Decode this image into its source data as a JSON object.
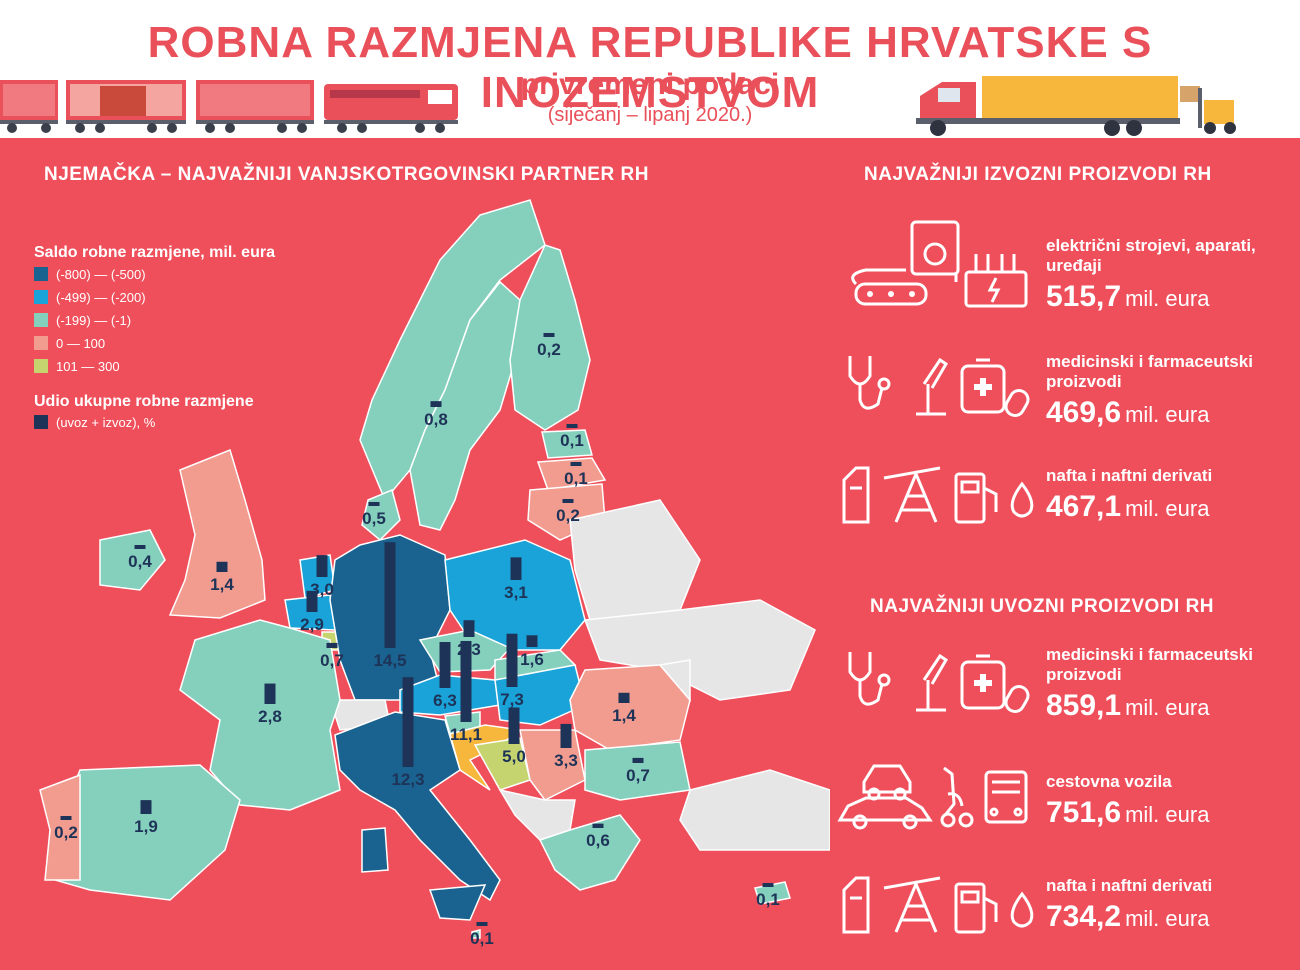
{
  "header": {
    "title": "ROBNA RAZMJENA REPUBLIKE HRVATSKE S INOZEMSTVOM",
    "subtitle": "privremeni podaci",
    "period": "(siječanj – lipanj 2020.)"
  },
  "map_section": {
    "title": "NJEMAČKA – NAJVAŽNIJI VANJSKOTRGOVINSKI PARTNER RH",
    "legend": {
      "saldo_title": "Saldo robne razmjene, mil. eura",
      "saldo_items": [
        {
          "label": "(-800) — (-500)",
          "color": "#1a628f"
        },
        {
          "label": "(-499) — (-200)",
          "color": "#1aa3d8"
        },
        {
          "label": "(-199) — (-1)",
          "color": "#85cfbd"
        },
        {
          "label": "0 — 100",
          "color": "#f29c90"
        },
        {
          "label": "101 — 300",
          "color": "#c5d46f"
        }
      ],
      "udio_title": "Udio ukupne robne razmjene",
      "udio_item": {
        "label": "(uvoz + izvoz), %",
        "color": "#1d3357"
      }
    },
    "countries": [
      {
        "name": "Germany",
        "share_label": "14,5",
        "share": 14.5
      },
      {
        "name": "Italy",
        "share_label": "12,3",
        "share": 12.3
      },
      {
        "name": "Slovenia",
        "share_label": "11,1",
        "share": 11.1
      },
      {
        "name": "Hungary",
        "share_label": "7,3",
        "share": 7.3
      },
      {
        "name": "Austria",
        "share_label": "6,3",
        "share": 6.3
      },
      {
        "name": "Bosnia and Herzegovina",
        "share_label": "5,0",
        "share": 5.0
      },
      {
        "name": "Serbia",
        "share_label": "3,3",
        "share": 3.3
      },
      {
        "name": "Poland",
        "share_label": "3,1",
        "share": 3.1
      },
      {
        "name": "Netherlands",
        "share_label": "3,0",
        "share": 3.0
      },
      {
        "name": "Belgium",
        "share_label": "2,9",
        "share": 2.9
      },
      {
        "name": "France",
        "share_label": "2,8",
        "share": 2.8
      },
      {
        "name": "Czech Republic",
        "share_label": "2,3",
        "share": 2.3
      },
      {
        "name": "Spain",
        "share_label": "1,9",
        "share": 1.9
      },
      {
        "name": "Slovakia",
        "share_label": "1,6",
        "share": 1.6
      },
      {
        "name": "United Kingdom",
        "share_label": "1,4",
        "share": 1.4
      },
      {
        "name": "Romania",
        "share_label": "1,4",
        "share": 1.4
      },
      {
        "name": "Sweden",
        "share_label": "0,8",
        "share": 0.8
      },
      {
        "name": "Luxembourg",
        "share_label": "0,7",
        "share": 0.7
      },
      {
        "name": "Bulgaria",
        "share_label": "0,7",
        "share": 0.7
      },
      {
        "name": "Greece",
        "share_label": "0,6",
        "share": 0.6
      },
      {
        "name": "Denmark",
        "share_label": "0,5",
        "share": 0.5
      },
      {
        "name": "Ireland",
        "share_label": "0,4",
        "share": 0.4
      },
      {
        "name": "Finland",
        "share_label": "0,2",
        "share": 0.2
      },
      {
        "name": "Lithuania",
        "share_label": "0,2",
        "share": 0.2
      },
      {
        "name": "Portugal",
        "share_label": "0,2",
        "share": 0.2
      },
      {
        "name": "Estonia",
        "share_label": "0,1",
        "share": 0.1
      },
      {
        "name": "Latvia",
        "share_label": "0,1",
        "share": 0.1
      },
      {
        "name": "Cyprus",
        "share_label": "0,1",
        "share": 0.1
      },
      {
        "name": "Malta",
        "share_label": "0,1",
        "share": 0.1
      }
    ]
  },
  "exports": {
    "title": "NAJVAŽNIJI IZVOZNI PROIZVODI RH",
    "items": [
      {
        "name": "električni strojevi, aparati, uređaji",
        "value": "515,7",
        "unit": "mil. eura",
        "icon": "electrical-icon"
      },
      {
        "name": "medicinski i farmaceutski proizvodi",
        "value": "469,6",
        "unit": "mil. eura",
        "icon": "medical-icon"
      },
      {
        "name": "nafta i naftni derivati",
        "value": "467,1",
        "unit": "mil. eura",
        "icon": "oil-icon"
      }
    ]
  },
  "imports": {
    "title": "NAJVAŽNIJI UVOZNI PROIZVODI RH",
    "items": [
      {
        "name": "medicinski i farmaceutski proizvodi",
        "value": "859,1",
        "unit": "mil. eura",
        "icon": "medical-icon"
      },
      {
        "name": "cestovna vozila",
        "value": "751,6",
        "unit": "mil. eura",
        "icon": "vehicles-icon"
      },
      {
        "name": "nafta i naftni derivati",
        "value": "734,2",
        "unit": "mil. eura",
        "icon": "oil-icon"
      }
    ]
  }
}
